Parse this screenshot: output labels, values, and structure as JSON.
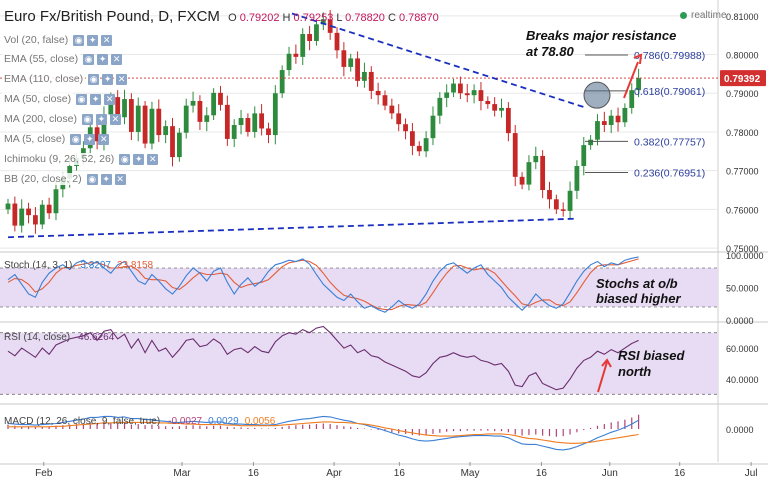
{
  "header": {
    "symbol_title": "Euro Fx/British Pound, D, FXCM",
    "o_label": "O",
    "o_value": "0.79202",
    "h_label": "H",
    "h_value": "0.79253",
    "l_label": "L",
    "l_value": "0.78820",
    "c_label": "C",
    "c_value": "0.78870",
    "realtime_label": "realtime"
  },
  "price_overlays": [
    {
      "label": "Vol (20, false)"
    },
    {
      "label": "EMA (55, close)"
    },
    {
      "label": "EMA (110, close)"
    },
    {
      "label": "MA (50, close)"
    },
    {
      "label": "MA (200, close)"
    },
    {
      "label": "MA (5, close)"
    },
    {
      "label": "Ichimoku (9, 26, 52, 26)"
    },
    {
      "label": "BB (20, close, 2)"
    }
  ],
  "chart_data": [
    {
      "type": "candlestick",
      "name": "price",
      "x_ticks": [
        "Feb",
        "Mar",
        "16",
        "Apr",
        "16",
        "May",
        "16",
        "Jun",
        "16",
        "Jul"
      ],
      "y_ticks": [
        "0.81000",
        "0.80000",
        "0.79000",
        "0.78000",
        "0.77000",
        "0.76000",
        "0.75000"
      ],
      "ylim": [
        0.7495,
        0.8128
      ],
      "current_price_label": "0.79392",
      "current_price": 0.79392,
      "fib_levels": [
        {
          "label": "0.786(0.79988)",
          "value": 0.79988
        },
        {
          "label": "0.618(0.79061)",
          "value": 0.79061
        },
        {
          "label": "0.382(0.77757)",
          "value": 0.77757
        },
        {
          "label": "0.236(0.76951)",
          "value": 0.76951
        }
      ],
      "annotations": [
        "Breaks major resistance",
        "at 78.80"
      ],
      "trendlines": [
        {
          "style": "dashed",
          "from": [
            0.0,
            0.7528
          ],
          "to": [
            0.8,
            0.7576
          ]
        },
        {
          "style": "dashed",
          "from": [
            0.4,
            0.8106
          ],
          "to": [
            0.815,
            0.7862
          ]
        }
      ],
      "candles_close": [
        0.7615,
        0.7558,
        0.7602,
        0.7585,
        0.7561,
        0.7612,
        0.759,
        0.7652,
        0.768,
        0.7712,
        0.7732,
        0.7758,
        0.7812,
        0.7776,
        0.7845,
        0.789,
        0.7838,
        0.7885,
        0.78,
        0.7868,
        0.777,
        0.786,
        0.7792,
        0.7815,
        0.7735,
        0.7798,
        0.7868,
        0.788,
        0.7826,
        0.7843,
        0.7901,
        0.787,
        0.7782,
        0.7818,
        0.7836,
        0.78,
        0.7848,
        0.7809,
        0.7792,
        0.79,
        0.796,
        0.8002,
        0.7994,
        0.8053,
        0.8035,
        0.8078,
        0.8091,
        0.8056,
        0.8011,
        0.7968,
        0.799,
        0.7932,
        0.7955,
        0.7906,
        0.7895,
        0.7868,
        0.7848,
        0.782,
        0.7802,
        0.7764,
        0.775,
        0.7784,
        0.7842,
        0.7888,
        0.7902,
        0.7925,
        0.79,
        0.7895,
        0.7908,
        0.788,
        0.7872,
        0.7855,
        0.7862,
        0.7797,
        0.7684,
        0.7664,
        0.7722,
        0.7738,
        0.765,
        0.7626,
        0.76,
        0.7596,
        0.7648,
        0.7712,
        0.7766,
        0.778,
        0.7828,
        0.7818,
        0.7842,
        0.7825,
        0.7862,
        0.7908,
        0.7939
      ]
    },
    {
      "type": "line",
      "name": "stochastic",
      "legend_label": "Stoch (14, 3, 1)",
      "legend_values": [
        "3.3207",
        "23.8158"
      ],
      "y_ticks": [
        "100.0000",
        "50.0000",
        "0.0000"
      ],
      "ylim": [
        0,
        100
      ],
      "overbought": 80,
      "oversold": 20,
      "annotation": [
        "Stochs at o/b",
        "biased higher"
      ],
      "k": [
        62,
        70,
        55,
        40,
        35,
        58,
        72,
        80,
        85,
        78,
        88,
        92,
        84,
        90,
        80,
        72,
        85,
        90,
        75,
        60,
        55,
        70,
        60,
        48,
        40,
        52,
        68,
        80,
        72,
        60,
        75,
        80,
        58,
        40,
        55,
        65,
        52,
        60,
        75,
        85,
        88,
        92,
        90,
        94,
        86,
        70,
        55,
        45,
        35,
        30,
        40,
        28,
        18,
        22,
        16,
        12,
        20,
        30,
        22,
        18,
        25,
        40,
        60,
        75,
        85,
        88,
        80,
        72,
        80,
        85,
        70,
        60,
        50,
        35,
        25,
        15,
        25,
        40,
        30,
        22,
        18,
        25,
        42,
        60,
        75,
        85,
        90,
        82,
        88,
        85,
        92,
        95,
        97
      ],
      "d": [
        58,
        64,
        62,
        55,
        43,
        48,
        58,
        72,
        80,
        81,
        84,
        86,
        88,
        88,
        85,
        80,
        80,
        82,
        83,
        76,
        64,
        62,
        62,
        60,
        50,
        47,
        55,
        65,
        73,
        70,
        70,
        72,
        70,
        58,
        50,
        54,
        56,
        58,
        62,
        72,
        82,
        88,
        90,
        92,
        90,
        84,
        72,
        58,
        47,
        38,
        35,
        33,
        29,
        23,
        18,
        16,
        16,
        21,
        24,
        23,
        22,
        27,
        42,
        58,
        72,
        83,
        84,
        80,
        77,
        79,
        78,
        72,
        60,
        48,
        37,
        25,
        22,
        27,
        31,
        31,
        24,
        22,
        28,
        42,
        58,
        73,
        83,
        85,
        85,
        85,
        88,
        91,
        94
      ]
    },
    {
      "type": "line",
      "name": "rsi",
      "legend_label": "RSI (14, close)",
      "legend_value": "46.6264",
      "y_ticks": [
        "60.0000",
        "40.0000"
      ],
      "ylim": [
        25,
        75
      ],
      "upper_band": 70,
      "lower_band": 30,
      "annotation": [
        "RSI biased",
        "north"
      ],
      "values": [
        58,
        55,
        60,
        57,
        54,
        60,
        56,
        62,
        64,
        66,
        67,
        68,
        70,
        65,
        71,
        72,
        66,
        69,
        60,
        66,
        57,
        65,
        58,
        60,
        54,
        59,
        65,
        66,
        61,
        62,
        66,
        63,
        56,
        59,
        60,
        57,
        61,
        58,
        57,
        64,
        68,
        70,
        69,
        72,
        70,
        73,
        74,
        70,
        65,
        60,
        62,
        57,
        59,
        55,
        54,
        51,
        49,
        47,
        45,
        42,
        41,
        44,
        50,
        54,
        55,
        57,
        55,
        54,
        55,
        52,
        51,
        49,
        50,
        45,
        36,
        35,
        42,
        44,
        37,
        35,
        33,
        34,
        40,
        47,
        52,
        54,
        58,
        56,
        59,
        57,
        60,
        63,
        65
      ]
    },
    {
      "type": "bar",
      "name": "macd",
      "legend_label": "MACD (12, 26, close, 9, false, true)",
      "legend_values": [
        "-0.0027",
        "0.0029",
        "0.0056"
      ],
      "y_ticks": [
        "0.0000"
      ],
      "ylim": [
        -0.006,
        0.004
      ],
      "histogram": [
        0.0008,
        0.0006,
        0.0004,
        0.0005,
        0.0003,
        0.0004,
        0.0005,
        0.0006,
        0.0007,
        0.0008,
        0.0009,
        0.001,
        0.0012,
        0.0011,
        0.0013,
        0.0012,
        0.001,
        0.0011,
        0.0008,
        0.0009,
        0.0007,
        0.0008,
        0.0006,
        0.0005,
        0.0004,
        0.0005,
        0.0006,
        0.0007,
        0.0006,
        0.0005,
        0.0006,
        0.0006,
        0.0004,
        0.0003,
        0.0003,
        0.0002,
        0.0002,
        0.0001,
        0.0001,
        0.0002,
        0.0004,
        0.0006,
        0.0007,
        0.0008,
        0.0008,
        0.0009,
        0.001,
        0.0009,
        0.0007,
        0.0005,
        0.0004,
        0.0002,
        0.0001,
        -0.0001,
        -0.0002,
        -0.0004,
        -0.0006,
        -0.0008,
        -0.0009,
        -0.0011,
        -0.0012,
        -0.0011,
        -0.0009,
        -0.0007,
        -0.0005,
        -0.0004,
        -0.0004,
        -0.0003,
        -0.0003,
        -0.0003,
        -0.0003,
        -0.0004,
        -0.0004,
        -0.0006,
        -0.001,
        -0.0012,
        -0.0011,
        -0.001,
        -0.0012,
        -0.0013,
        -0.0014,
        -0.0013,
        -0.001,
        -0.0006,
        -0.0002,
        0.0002,
        0.0006,
        0.0009,
        0.0012,
        0.0014,
        0.0017,
        0.0021,
        0.0026
      ],
      "macd_line": [
        0.001,
        0.0009,
        0.0008,
        0.0008,
        0.0007,
        0.0008,
        0.0009,
        0.001,
        0.0012,
        0.0014,
        0.0016,
        0.0018,
        0.0021,
        0.0021,
        0.0023,
        0.0023,
        0.0021,
        0.0022,
        0.0019,
        0.0019,
        0.0017,
        0.0017,
        0.0015,
        0.0014,
        0.0012,
        0.0012,
        0.0013,
        0.0014,
        0.0013,
        0.0012,
        0.0013,
        0.0013,
        0.001,
        0.0009,
        0.0009,
        0.0008,
        0.0008,
        0.0007,
        0.0007,
        0.0008,
        0.0011,
        0.0014,
        0.0016,
        0.0018,
        0.0019,
        0.0021,
        0.0023,
        0.0022,
        0.0019,
        0.0016,
        0.0014,
        0.001,
        0.0008,
        0.0004,
        0.0001,
        -0.0003,
        -0.0007,
        -0.0011,
        -0.0014,
        -0.0018,
        -0.0021,
        -0.0022,
        -0.0021,
        -0.0019,
        -0.0017,
        -0.0015,
        -0.0014,
        -0.0013,
        -0.0012,
        -0.0012,
        -0.0012,
        -0.0013,
        -0.0013,
        -0.0016,
        -0.0022,
        -0.0027,
        -0.0028,
        -0.0028,
        -0.0031,
        -0.0034,
        -0.0037,
        -0.0038,
        -0.0036,
        -0.0032,
        -0.0027,
        -0.0022,
        -0.0016,
        -0.0011,
        -0.0006,
        -0.0002,
        0.0003,
        0.0009,
        0.0016
      ],
      "signal_line": [
        0.0004,
        0.0004,
        0.0004,
        0.0004,
        0.0004,
        0.0004,
        0.0004,
        0.0005,
        0.0005,
        0.0006,
        0.0007,
        0.0008,
        0.0009,
        0.001,
        0.0011,
        0.0011,
        0.0012,
        0.0012,
        0.0012,
        0.0012,
        0.0012,
        0.0012,
        0.0011,
        0.0011,
        0.001,
        0.001,
        0.0009,
        0.0009,
        0.0008,
        0.0008,
        0.0008,
        0.0008,
        0.0007,
        0.0007,
        0.0006,
        0.0006,
        0.0006,
        0.0006,
        0.0006,
        0.0006,
        0.0007,
        0.0008,
        0.0009,
        0.001,
        0.0011,
        0.0012,
        0.0013,
        0.0013,
        0.0012,
        0.0012,
        0.0011,
        0.001,
        0.0009,
        0.0007,
        0.0005,
        0.0002,
        0.0,
        -0.0003,
        -0.0005,
        -0.0007,
        -0.0009,
        -0.0011,
        -0.0012,
        -0.0013,
        -0.0013,
        -0.0013,
        -0.0012,
        -0.0011,
        -0.001,
        -0.001,
        -0.0009,
        -0.0009,
        -0.0009,
        -0.001,
        -0.0012,
        -0.0015,
        -0.0017,
        -0.0018,
        -0.002,
        -0.0022,
        -0.0024,
        -0.0025,
        -0.0026,
        -0.0026,
        -0.0025,
        -0.0024,
        -0.0022,
        -0.002,
        -0.0018,
        -0.0016,
        -0.0014,
        -0.0012,
        -0.001
      ]
    }
  ],
  "colors": {
    "bull": "#2e8b3d",
    "bear": "#c62828",
    "fib_text": "#2c3e9e",
    "trend": "#1a2fbf",
    "annotation_arrow": "#e53935",
    "price_line": "#d32f2f",
    "osc_fill": "#e7dcf3",
    "stoch_k": "#3a7fd5",
    "stoch_d": "#e35d3a",
    "rsi_line": "#6b2d6e",
    "macd_line": "#3a7fd5",
    "macd_signal": "#f07c21",
    "macd_hist": "#b0437a",
    "grid": "#e8e8e8"
  }
}
